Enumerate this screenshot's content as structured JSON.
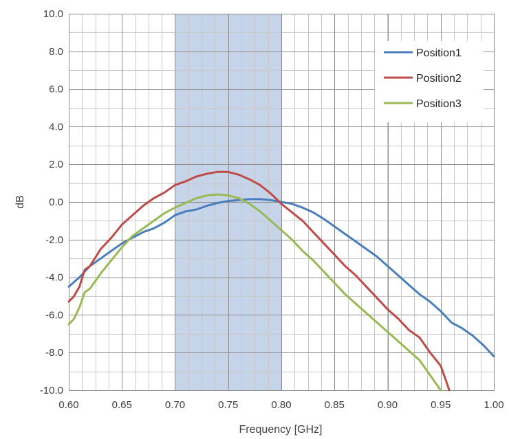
{
  "chart_data": {
    "type": "line",
    "title": "",
    "xlabel": "Frequency [GHz]",
    "ylabel": "dB",
    "xlim": [
      0.6,
      1.0
    ],
    "ylim": [
      -10.0,
      10.0
    ],
    "x_ticks": [
      "0.60",
      "0.65",
      "0.70",
      "0.75",
      "0.80",
      "0.85",
      "0.90",
      "0.95",
      "1.00"
    ],
    "y_ticks": [
      "10.0",
      "8.0",
      "6.0",
      "4.0",
      "2.0",
      "0.0",
      "-2.0",
      "-4.0",
      "-6.0",
      "-8.0",
      "-10.0"
    ],
    "grid": true,
    "legend_position": "top-right",
    "highlight_band": {
      "x_range": [
        0.7,
        0.8
      ],
      "color": "#c5d4e9"
    },
    "series": [
      {
        "name": "Position1",
        "color": "#4a7ebb",
        "points": [
          [
            0.6,
            -4.5
          ],
          [
            0.61,
            -4.0
          ],
          [
            0.62,
            -3.4
          ],
          [
            0.63,
            -3.0
          ],
          [
            0.64,
            -2.6
          ],
          [
            0.65,
            -2.2
          ],
          [
            0.66,
            -1.9
          ],
          [
            0.67,
            -1.6
          ],
          [
            0.68,
            -1.4
          ],
          [
            0.69,
            -1.1
          ],
          [
            0.7,
            -0.7
          ],
          [
            0.71,
            -0.5
          ],
          [
            0.72,
            -0.4
          ],
          [
            0.73,
            -0.2
          ],
          [
            0.74,
            -0.05
          ],
          [
            0.75,
            0.05
          ],
          [
            0.76,
            0.1
          ],
          [
            0.77,
            0.15
          ],
          [
            0.78,
            0.15
          ],
          [
            0.79,
            0.1
          ],
          [
            0.8,
            0.0
          ],
          [
            0.81,
            -0.1
          ],
          [
            0.82,
            -0.3
          ],
          [
            0.83,
            -0.55
          ],
          [
            0.84,
            -0.9
          ],
          [
            0.85,
            -1.3
          ],
          [
            0.86,
            -1.7
          ],
          [
            0.87,
            -2.1
          ],
          [
            0.88,
            -2.5
          ],
          [
            0.89,
            -2.9
          ],
          [
            0.9,
            -3.4
          ],
          [
            0.91,
            -3.9
          ],
          [
            0.92,
            -4.4
          ],
          [
            0.93,
            -4.9
          ],
          [
            0.94,
            -5.3
          ],
          [
            0.95,
            -5.8
          ],
          [
            0.96,
            -6.4
          ],
          [
            0.97,
            -6.7
          ],
          [
            0.98,
            -7.1
          ],
          [
            0.99,
            -7.6
          ],
          [
            1.0,
            -8.2
          ]
        ]
      },
      {
        "name": "Position2",
        "color": "#be4b48",
        "points": [
          [
            0.6,
            -5.3
          ],
          [
            0.605,
            -5.0
          ],
          [
            0.61,
            -4.5
          ],
          [
            0.615,
            -3.6
          ],
          [
            0.62,
            -3.4
          ],
          [
            0.63,
            -2.5
          ],
          [
            0.64,
            -1.9
          ],
          [
            0.65,
            -1.2
          ],
          [
            0.66,
            -0.7
          ],
          [
            0.67,
            -0.2
          ],
          [
            0.68,
            0.2
          ],
          [
            0.69,
            0.5
          ],
          [
            0.7,
            0.9
          ],
          [
            0.71,
            1.1
          ],
          [
            0.72,
            1.35
          ],
          [
            0.73,
            1.5
          ],
          [
            0.74,
            1.6
          ],
          [
            0.75,
            1.6
          ],
          [
            0.76,
            1.45
          ],
          [
            0.77,
            1.2
          ],
          [
            0.78,
            0.9
          ],
          [
            0.79,
            0.45
          ],
          [
            0.8,
            -0.1
          ],
          [
            0.81,
            -0.55
          ],
          [
            0.82,
            -1.0
          ],
          [
            0.83,
            -1.6
          ],
          [
            0.84,
            -2.2
          ],
          [
            0.85,
            -2.8
          ],
          [
            0.86,
            -3.4
          ],
          [
            0.87,
            -3.9
          ],
          [
            0.88,
            -4.5
          ],
          [
            0.89,
            -5.1
          ],
          [
            0.9,
            -5.7
          ],
          [
            0.91,
            -6.2
          ],
          [
            0.92,
            -6.8
          ],
          [
            0.93,
            -7.2
          ],
          [
            0.94,
            -8.0
          ],
          [
            0.95,
            -8.7
          ],
          [
            0.955,
            -9.5
          ],
          [
            0.958,
            -10.0
          ]
        ]
      },
      {
        "name": "Position3",
        "color": "#98b954",
        "points": [
          [
            0.6,
            -6.5
          ],
          [
            0.605,
            -6.2
          ],
          [
            0.61,
            -5.6
          ],
          [
            0.615,
            -4.8
          ],
          [
            0.62,
            -4.6
          ],
          [
            0.63,
            -3.8
          ],
          [
            0.64,
            -3.1
          ],
          [
            0.65,
            -2.4
          ],
          [
            0.66,
            -1.8
          ],
          [
            0.67,
            -1.4
          ],
          [
            0.68,
            -1.0
          ],
          [
            0.69,
            -0.6
          ],
          [
            0.7,
            -0.3
          ],
          [
            0.71,
            -0.05
          ],
          [
            0.72,
            0.2
          ],
          [
            0.73,
            0.35
          ],
          [
            0.74,
            0.4
          ],
          [
            0.75,
            0.35
          ],
          [
            0.76,
            0.2
          ],
          [
            0.77,
            -0.1
          ],
          [
            0.78,
            -0.5
          ],
          [
            0.79,
            -1.0
          ],
          [
            0.8,
            -1.5
          ],
          [
            0.81,
            -2.0
          ],
          [
            0.82,
            -2.6
          ],
          [
            0.83,
            -3.1
          ],
          [
            0.84,
            -3.7
          ],
          [
            0.85,
            -4.3
          ],
          [
            0.86,
            -4.9
          ],
          [
            0.87,
            -5.4
          ],
          [
            0.88,
            -5.9
          ],
          [
            0.89,
            -6.4
          ],
          [
            0.9,
            -6.9
          ],
          [
            0.91,
            -7.4
          ],
          [
            0.92,
            -7.9
          ],
          [
            0.93,
            -8.4
          ],
          [
            0.94,
            -9.2
          ],
          [
            0.945,
            -9.6
          ],
          [
            0.95,
            -10.0
          ]
        ]
      }
    ]
  }
}
